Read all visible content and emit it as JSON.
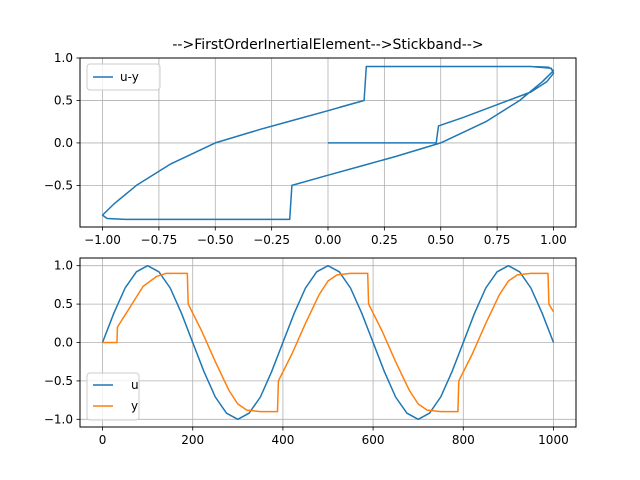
{
  "colors": {
    "series_1": "#1f77b4",
    "series_2": "#ff7f0e",
    "grid": "#b0b0b0"
  },
  "chart_data": [
    {
      "type": "line",
      "title": "-->FirstOrderInertialElement-->Stickband-->",
      "xlabel": "",
      "ylabel": "",
      "xlim": [
        -1.1,
        1.1
      ],
      "ylim": [
        -0.99,
        1.0
      ],
      "xticks": [
        "−1.00",
        "−0.75",
        "−0.50",
        "−0.25",
        "0.00",
        "0.25",
        "0.50",
        "0.75",
        "1.00"
      ],
      "yticks": [
        "−0.5",
        "0.0",
        "0.5",
        "1.0"
      ],
      "grid": true,
      "legend": "top-left",
      "series": [
        {
          "name": "u-y",
          "color": "#1f77b4",
          "points": [
            [
              0.0,
              0.0
            ],
            [
              0.48,
              0.0
            ],
            [
              0.49,
              0.2
            ],
            [
              0.6,
              0.3
            ],
            [
              0.75,
              0.45
            ],
            [
              0.9,
              0.6
            ],
            [
              0.97,
              0.72
            ],
            [
              1.0,
              0.82
            ],
            [
              0.99,
              0.88
            ],
            [
              0.9,
              0.9
            ],
            [
              0.7,
              0.9
            ],
            [
              0.5,
              0.9
            ],
            [
              0.3,
              0.9
            ],
            [
              0.17,
              0.9
            ],
            [
              0.16,
              0.5
            ],
            [
              0.0,
              0.38
            ],
            [
              -0.15,
              0.27
            ],
            [
              -0.3,
              0.16
            ],
            [
              -0.5,
              0.0
            ],
            [
              -0.7,
              -0.25
            ],
            [
              -0.85,
              -0.5
            ],
            [
              -0.95,
              -0.72
            ],
            [
              -1.0,
              -0.85
            ],
            [
              -0.98,
              -0.89
            ],
            [
              -0.9,
              -0.9
            ],
            [
              -0.7,
              -0.9
            ],
            [
              -0.5,
              -0.9
            ],
            [
              -0.3,
              -0.9
            ],
            [
              -0.17,
              -0.9
            ],
            [
              -0.16,
              -0.5
            ],
            [
              0.0,
              -0.38
            ],
            [
              0.15,
              -0.27
            ],
            [
              0.3,
              -0.16
            ],
            [
              0.5,
              0.0
            ],
            [
              0.7,
              0.25
            ],
            [
              0.85,
              0.5
            ],
            [
              0.95,
              0.72
            ],
            [
              1.0,
              0.85
            ],
            [
              0.98,
              0.89
            ],
            [
              0.9,
              0.9
            ],
            [
              0.7,
              0.9
            ],
            [
              0.5,
              0.9
            ],
            [
              0.3,
              0.9
            ],
            [
              0.17,
              0.9
            ],
            [
              0.16,
              0.5
            ],
            [
              0.0,
              0.38
            ],
            [
              -0.15,
              0.27
            ],
            [
              -0.3,
              0.16
            ],
            [
              -0.5,
              0.0
            ],
            [
              -0.7,
              -0.25
            ],
            [
              -0.85,
              -0.5
            ],
            [
              -0.95,
              -0.72
            ],
            [
              -1.0,
              -0.85
            ],
            [
              -0.98,
              -0.89
            ],
            [
              -0.9,
              -0.9
            ],
            [
              -0.7,
              -0.9
            ],
            [
              -0.5,
              -0.9
            ],
            [
              -0.3,
              -0.9
            ],
            [
              -0.17,
              -0.9
            ],
            [
              -0.16,
              -0.5
            ],
            [
              0.0,
              -0.38
            ],
            [
              0.15,
              -0.27
            ],
            [
              0.3,
              -0.16
            ],
            [
              0.5,
              0.0
            ],
            [
              0.7,
              0.25
            ],
            [
              0.85,
              0.5
            ],
            [
              0.95,
              0.72
            ],
            [
              1.0,
              0.85
            ],
            [
              0.98,
              0.89
            ],
            [
              0.9,
              0.9
            ],
            [
              0.7,
              0.9
            ],
            [
              0.5,
              0.9
            ],
            [
              0.3,
              0.9
            ],
            [
              0.17,
              0.9
            ],
            [
              0.16,
              0.5
            ],
            [
              0.05,
              0.42
            ]
          ]
        }
      ]
    },
    {
      "type": "line",
      "title": "",
      "xlabel": "",
      "ylabel": "",
      "xlim": [
        -50,
        1050
      ],
      "ylim": [
        -1.1,
        1.1
      ],
      "xticks": [
        "0",
        "200",
        "400",
        "600",
        "800",
        "1000"
      ],
      "xtick_values": [
        0,
        200,
        400,
        600,
        800,
        1000
      ],
      "yticks": [
        "−1.0",
        "−0.5",
        "0.0",
        "0.5",
        "1.0"
      ],
      "ytick_values": [
        -1.0,
        -0.5,
        0.0,
        0.5,
        1.0
      ],
      "grid": true,
      "legend": "bottom-left",
      "series": [
        {
          "name": "u",
          "color": "#1f77b4",
          "x": [
            0,
            25,
            50,
            75,
            100,
            125,
            150,
            175,
            200,
            225,
            250,
            275,
            300,
            325,
            350,
            375,
            400,
            425,
            450,
            475,
            500,
            525,
            550,
            575,
            600,
            625,
            650,
            675,
            700,
            725,
            750,
            775,
            800,
            825,
            850,
            875,
            900,
            925,
            950,
            975,
            1000
          ],
          "y": [
            0.0,
            0.38,
            0.71,
            0.92,
            1.0,
            0.92,
            0.71,
            0.38,
            0.0,
            -0.38,
            -0.71,
            -0.92,
            -1.0,
            -0.92,
            -0.71,
            -0.38,
            0.0,
            0.38,
            0.71,
            0.92,
            1.0,
            0.92,
            0.71,
            0.38,
            0.0,
            -0.38,
            -0.71,
            -0.92,
            -1.0,
            -0.92,
            -0.71,
            -0.38,
            0.0,
            0.38,
            0.71,
            0.92,
            1.0,
            0.92,
            0.71,
            0.38,
            0.0
          ]
        },
        {
          "name": "y",
          "color": "#ff7f0e",
          "x": [
            0,
            32,
            33,
            60,
            90,
            120,
            140,
            160,
            188,
            190,
            220,
            250,
            280,
            300,
            320,
            350,
            388,
            390,
            420,
            450,
            480,
            500,
            520,
            550,
            588,
            590,
            620,
            650,
            680,
            700,
            720,
            750,
            788,
            790,
            820,
            850,
            880,
            900,
            920,
            950,
            988,
            990,
            1000
          ],
          "y": [
            0.0,
            0.0,
            0.2,
            0.45,
            0.73,
            0.86,
            0.9,
            0.9,
            0.9,
            0.5,
            0.15,
            -0.25,
            -0.62,
            -0.8,
            -0.88,
            -0.9,
            -0.9,
            -0.5,
            -0.15,
            0.25,
            0.62,
            0.8,
            0.88,
            0.9,
            0.9,
            0.5,
            0.15,
            -0.25,
            -0.62,
            -0.8,
            -0.88,
            -0.9,
            -0.9,
            -0.5,
            -0.15,
            0.25,
            0.62,
            0.8,
            0.88,
            0.9,
            0.9,
            0.5,
            0.4
          ]
        }
      ]
    }
  ]
}
